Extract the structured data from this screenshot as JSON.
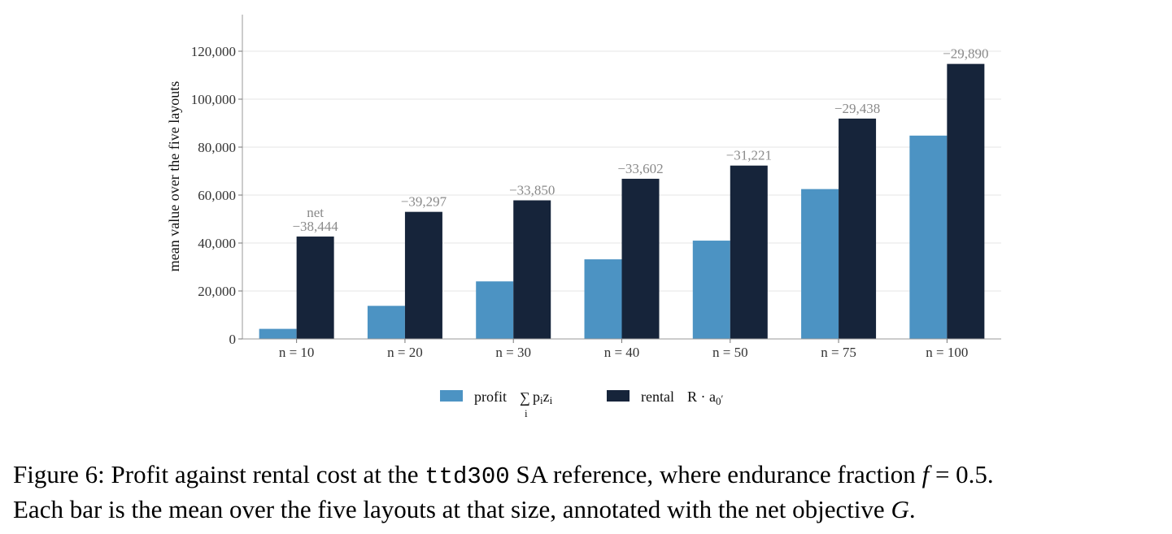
{
  "chart_data": {
    "type": "bar",
    "categories": [
      "n = 10",
      "n = 20",
      "n = 30",
      "n = 40",
      "n = 50",
      "n = 75",
      "n = 100"
    ],
    "series": [
      {
        "name": "profit",
        "values": [
          4200,
          13800,
          24000,
          33200,
          41000,
          62500,
          84800
        ],
        "color": "#4c93c3"
      },
      {
        "name": "rental",
        "values": [
          42700,
          53000,
          57800,
          66800,
          72300,
          91900,
          114700
        ],
        "color": "#16243a"
      }
    ],
    "net_labels": [
      "−38,444",
      "−39,297",
      "−33,850",
      "−33,602",
      "−31,221",
      "−29,438",
      "−29,890"
    ],
    "net_first_prefix": "net",
    "ylabel": "mean value over the five layouts",
    "ylim": [
      0,
      130000
    ],
    "yticks": [
      0,
      20000,
      40000,
      60000,
      80000,
      100000,
      120000
    ],
    "ytick_labels": [
      "0",
      "20,000",
      "40,000",
      "60,000",
      "80,000",
      "100,000",
      "120,000"
    ],
    "grid": true,
    "legend": {
      "placement": "bottom-center",
      "profit_label": "profit",
      "profit_sigma": "∑",
      "profit_sub": "i",
      "profit_expr_p": "p",
      "profit_expr_z": "z",
      "rental_label": "rental",
      "rental_expr": "R · a",
      "rental_sub": "0",
      "rental_sub_mark": "′"
    }
  },
  "caption": {
    "prefix": "Figure 6: Profit against rental cost at the ",
    "code": "ttd300",
    "middle": " SA reference, where endurance fraction ",
    "var_f": "f",
    "eq": " = 0.5.",
    "line2": "Each bar is the mean over the five layouts at that size, annotated with the net objective ",
    "var_g": "G",
    "end": "."
  }
}
